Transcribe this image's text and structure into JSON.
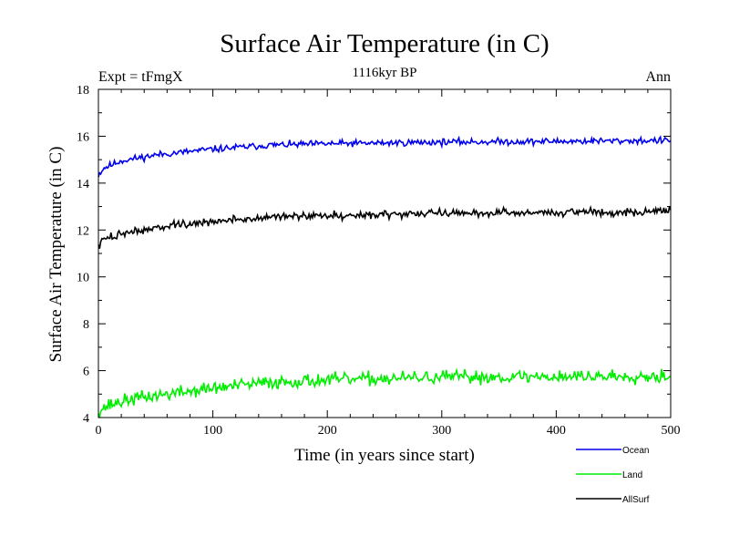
{
  "chart_data": {
    "type": "line",
    "title": "Surface Air Temperature (in C)",
    "subtitle": "1116kyr BP",
    "left_label": "Expt = tFmgX",
    "right_label": "Ann",
    "xlabel": "Time (in years since start)",
    "ylabel": "Surface Air Temperature (in C)",
    "xlim": [
      0,
      500
    ],
    "ylim": [
      4,
      18
    ],
    "xticks": [
      0,
      100,
      200,
      300,
      400,
      500
    ],
    "yticks": [
      4,
      6,
      8,
      10,
      12,
      14,
      16,
      18
    ],
    "legend_position": "bottom-right",
    "series": [
      {
        "name": "Ocean",
        "color": "#0000ee",
        "keypoints": [
          [
            0,
            14.35
          ],
          [
            5,
            14.65
          ],
          [
            20,
            14.95
          ],
          [
            50,
            15.2
          ],
          [
            100,
            15.45
          ],
          [
            150,
            15.62
          ],
          [
            200,
            15.68
          ],
          [
            300,
            15.75
          ],
          [
            400,
            15.78
          ],
          [
            500,
            15.82
          ]
        ],
        "noise": 0.1,
        "seed": 11
      },
      {
        "name": "Land",
        "color": "#00ee00",
        "keypoints": [
          [
            0,
            4.3
          ],
          [
            10,
            4.55
          ],
          [
            30,
            4.8
          ],
          [
            60,
            5.0
          ],
          [
            100,
            5.25
          ],
          [
            150,
            5.5
          ],
          [
            200,
            5.6
          ],
          [
            300,
            5.72
          ],
          [
            400,
            5.75
          ],
          [
            500,
            5.78
          ]
        ],
        "noise": 0.2,
        "seed": 37
      },
      {
        "name": "AllSurf",
        "color": "#000000",
        "keypoints": [
          [
            0,
            11.3
          ],
          [
            5,
            11.6
          ],
          [
            20,
            11.85
          ],
          [
            50,
            12.1
          ],
          [
            100,
            12.35
          ],
          [
            150,
            12.55
          ],
          [
            200,
            12.62
          ],
          [
            300,
            12.72
          ],
          [
            400,
            12.75
          ],
          [
            500,
            12.8
          ]
        ],
        "noise": 0.12,
        "seed": 73
      }
    ]
  }
}
